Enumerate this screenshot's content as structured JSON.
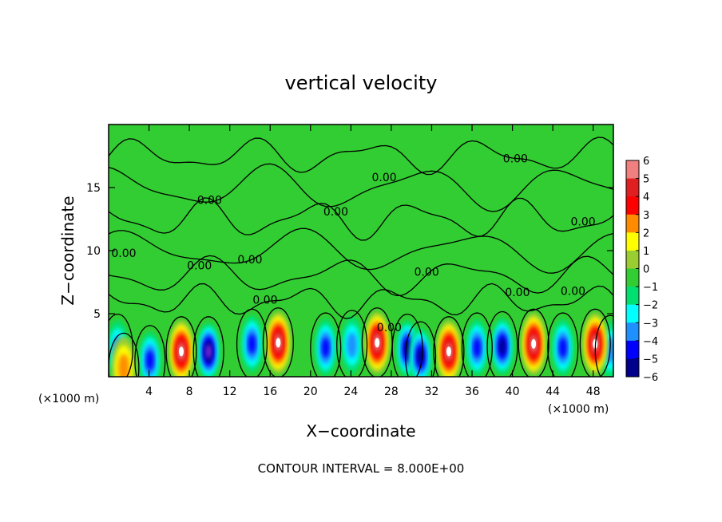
{
  "chart_data": {
    "type": "heatmap",
    "title": "vertical velocity",
    "xlabel": "X−coordinate",
    "ylabel": "Z−coordinate",
    "x_unit_left": "(×1000 m)",
    "x_unit_right": "(×1000 m)",
    "xlim": [
      0,
      50
    ],
    "ylim": [
      0,
      20
    ],
    "x_ticks": [
      4,
      8,
      12,
      16,
      20,
      24,
      28,
      32,
      36,
      40,
      44,
      48
    ],
    "x_tick_labels": [
      "4",
      "8",
      "12",
      "16",
      "20",
      "24",
      "28",
      "32",
      "36",
      "40",
      "44",
      "48"
    ],
    "y_ticks": [
      5,
      10,
      15
    ],
    "y_tick_labels": [
      "5",
      "10",
      "15"
    ],
    "colorbar": {
      "ticks": [
        6,
        5,
        4,
        3,
        2,
        1,
        0,
        -1,
        -2,
        -3,
        -4,
        -5,
        -6
      ],
      "labels": [
        "6",
        "5",
        "4",
        "3",
        "2",
        "1",
        "0",
        "−1",
        "−2",
        "−3",
        "−4",
        "−5",
        "−6"
      ],
      "colors": [
        "#f08080",
        "#e02020",
        "#ff0000",
        "#ff8c00",
        "#ffff00",
        "#9acd32",
        "#32cd32",
        "#00e070",
        "#00ffff",
        "#1e90ff",
        "#0000ff",
        "#00008b",
        "#8a2be2"
      ]
    },
    "background_value": 0,
    "updrafts": [
      {
        "x": 7.2,
        "z": 2.0,
        "peak": 6
      },
      {
        "x": 16.8,
        "z": 2.7,
        "peak": 6
      },
      {
        "x": 26.6,
        "z": 2.7,
        "peak": 6
      },
      {
        "x": 33.7,
        "z": 2.0,
        "peak": 6
      },
      {
        "x": 42.1,
        "z": 2.6,
        "peak": 6
      },
      {
        "x": 48.2,
        "z": 2.6,
        "peak": 6
      },
      {
        "x": 1.5,
        "z": 0.7,
        "peak": 3
      }
    ],
    "downdrafts": [
      {
        "x": 0.9,
        "z": 2.2,
        "peak": -3
      },
      {
        "x": 4.1,
        "z": 1.3,
        "peak": -4
      },
      {
        "x": 9.9,
        "z": 2.0,
        "peak": -6
      },
      {
        "x": 14.2,
        "z": 2.6,
        "peak": -4
      },
      {
        "x": 21.5,
        "z": 2.3,
        "peak": -4
      },
      {
        "x": 24.1,
        "z": 2.5,
        "peak": -3
      },
      {
        "x": 29.6,
        "z": 2.2,
        "peak": -5
      },
      {
        "x": 30.9,
        "z": 1.6,
        "peak": -5
      },
      {
        "x": 36.5,
        "z": 2.3,
        "peak": -4
      },
      {
        "x": 39.0,
        "z": 2.4,
        "peak": -5
      },
      {
        "x": 45.0,
        "z": 2.3,
        "peak": -4
      },
      {
        "x": 49.7,
        "z": 2.1,
        "peak": -3
      }
    ],
    "contour_labels": [
      {
        "text": "0.00",
        "x": 1.5,
        "z": 9.5
      },
      {
        "text": "0.00",
        "x": 10.0,
        "z": 13.7
      },
      {
        "text": "0.00",
        "x": 9.0,
        "z": 8.5
      },
      {
        "text": "0.00",
        "x": 14.0,
        "z": 9.0
      },
      {
        "text": "0.00",
        "x": 15.5,
        "z": 5.8
      },
      {
        "text": "0.00",
        "x": 22.5,
        "z": 12.8
      },
      {
        "text": "0.00",
        "x": 27.3,
        "z": 15.5
      },
      {
        "text": "0.00",
        "x": 31.5,
        "z": 8.0
      },
      {
        "text": "0.00",
        "x": 40.5,
        "z": 6.4
      },
      {
        "text": "0.00",
        "x": 40.3,
        "z": 17.0
      },
      {
        "text": "0.00",
        "x": 47.0,
        "z": 12.0
      },
      {
        "text": "0.00",
        "x": 46.0,
        "z": 6.5
      },
      {
        "text": "0.00",
        "x": 27.8,
        "z": 3.6
      }
    ],
    "footer": "CONTOUR INTERVAL = 8.000E+00"
  }
}
